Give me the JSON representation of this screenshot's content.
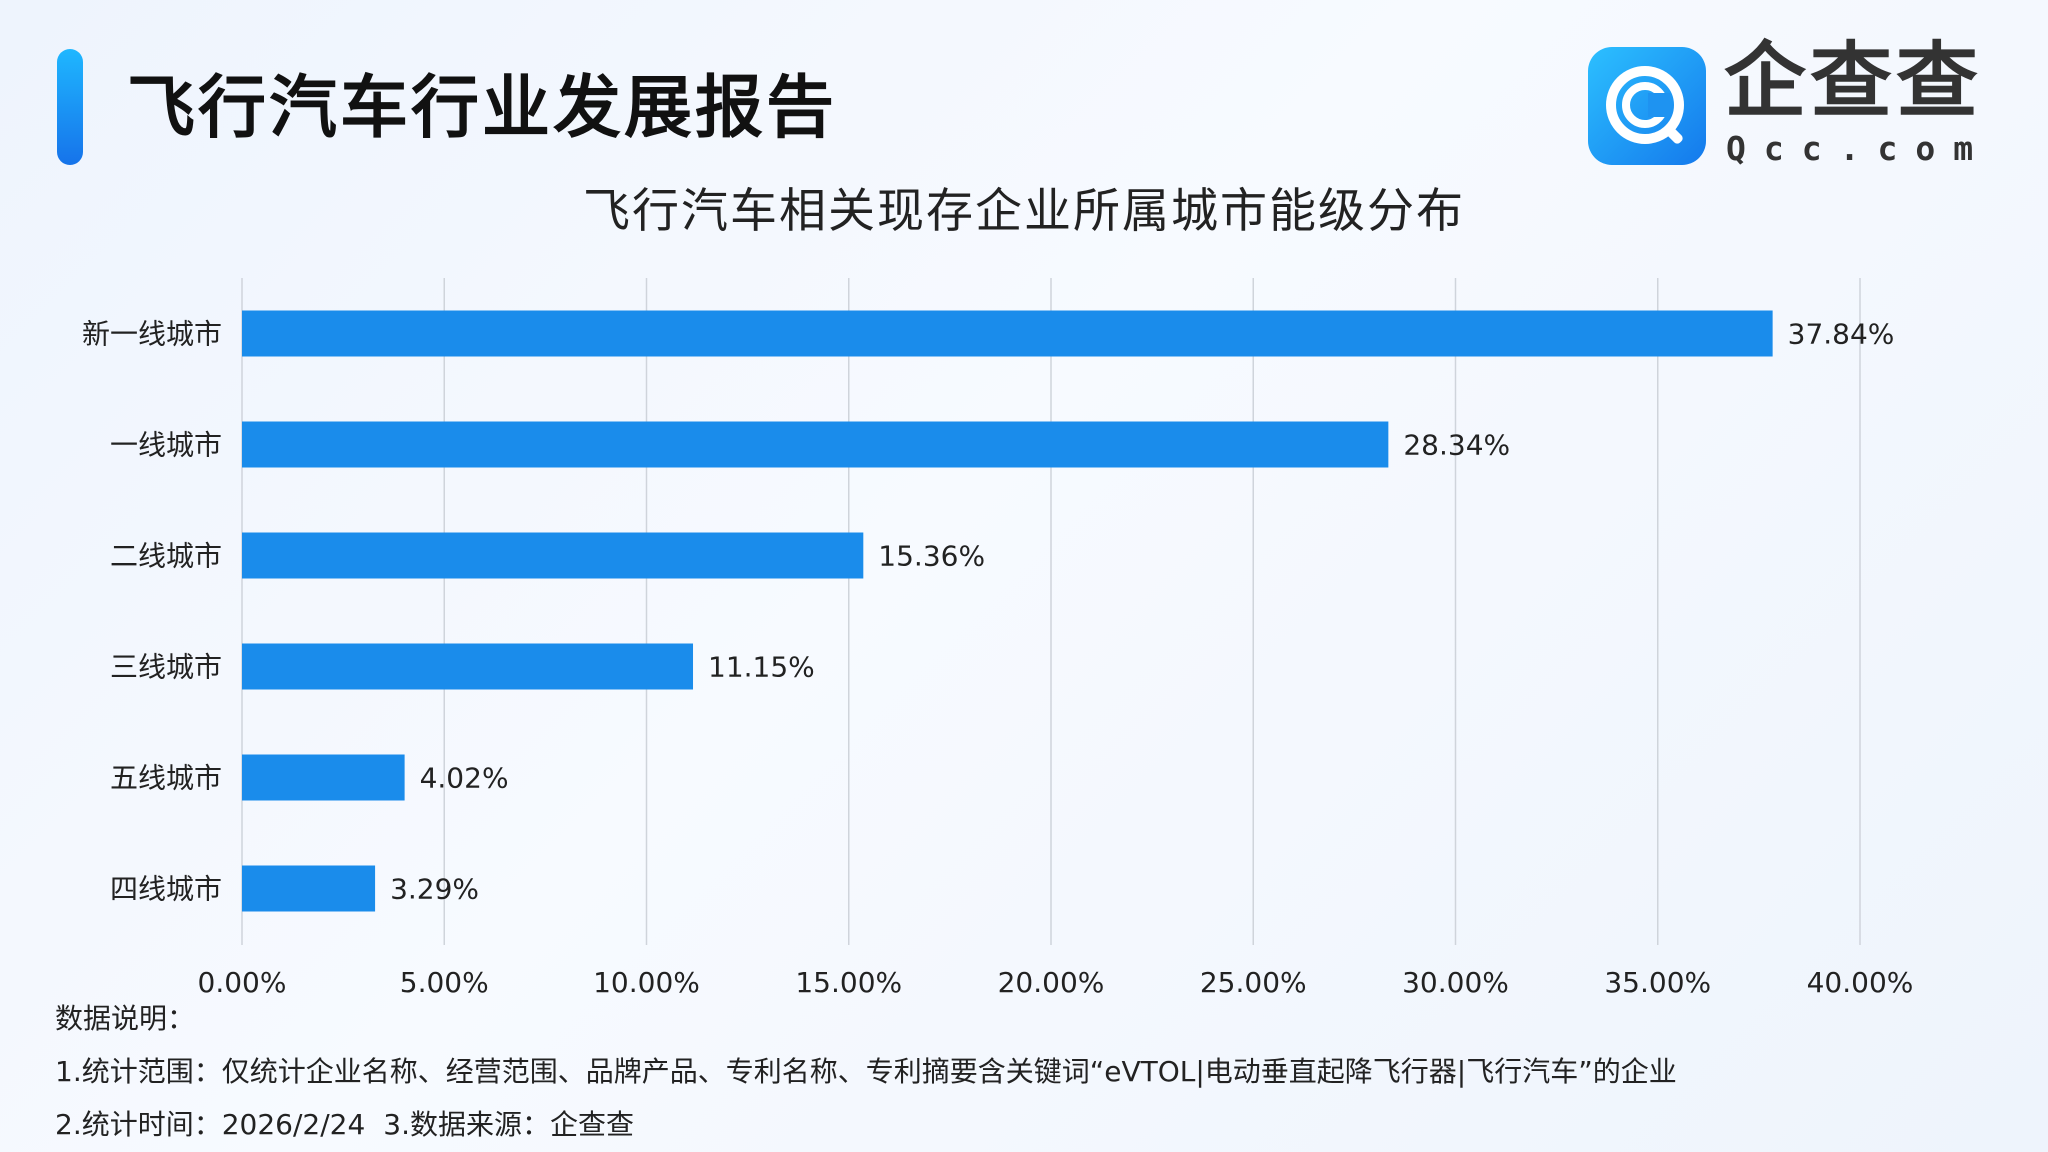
{
  "header": {
    "report_title": "飞行汽车行业发展报告",
    "logo_text": "企查查",
    "logo_subtext": "Qcc.com"
  },
  "colors": {
    "bar": "#1a8ceb",
    "grid": "#cfd4db",
    "accent": "#1b8ef0"
  },
  "chart_data": {
    "type": "bar",
    "orientation": "horizontal",
    "title": "飞行汽车相关现存企业所属城市能级分布",
    "categories": [
      "新一线城市",
      "一线城市",
      "二线城市",
      "三线城市",
      "五线城市",
      "四线城市"
    ],
    "values": [
      37.84,
      28.34,
      15.36,
      11.15,
      4.02,
      3.29
    ],
    "value_labels": [
      "37.84%",
      "28.34%",
      "15.36%",
      "11.15%",
      "4.02%",
      "3.29%"
    ],
    "xlim": [
      0,
      40
    ],
    "xticks": [
      0,
      5,
      10,
      15,
      20,
      25,
      30,
      35,
      40
    ],
    "xtick_labels": [
      "0.00%",
      "5.00%",
      "10.00%",
      "15.00%",
      "20.00%",
      "25.00%",
      "30.00%",
      "35.00%",
      "40.00%"
    ],
    "grid": "vertical",
    "legend": "none"
  },
  "notes": {
    "heading": "数据说明：",
    "line1": "1.统计范围：仅统计企业名称、经营范围、品牌产品、专利名称、专利摘要含关键词“eVTOL|电动垂直起降飞行器|飞行汽车”的企业",
    "line2a": "2.统计时间：2026/2/24",
    "line2b": "3.数据来源：企查查"
  }
}
